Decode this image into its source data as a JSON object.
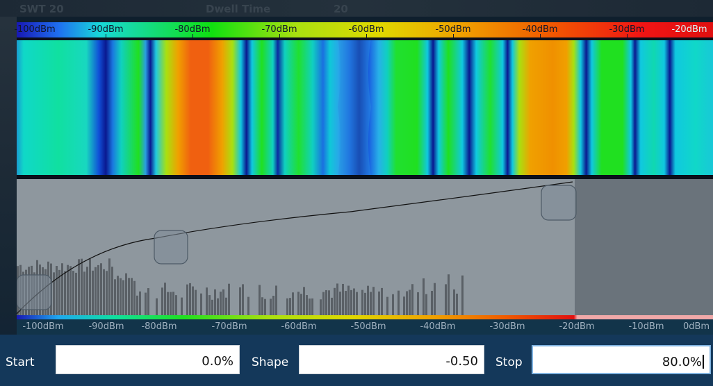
{
  "ghost_header": {
    "left": "SWT 20",
    "mid": "Dwell Time",
    "right": "20"
  },
  "top_axis": {
    "labels": [
      "-100dBm",
      "-90dBm",
      "-80dBm",
      "-70dBm",
      "-60dBm",
      "-50dBm",
      "-40dBm",
      "-30dBm",
      "-20dBm"
    ]
  },
  "bottom_axis": {
    "labels": [
      "-100dBm",
      "-90dBm",
      "-80dBm",
      "-70dBm",
      "-60dBm",
      "-50dBm",
      "-40dBm",
      "-30dBm",
      "-20dBm",
      "-10dBm",
      "0dBm"
    ]
  },
  "color_mapping": {
    "start": {
      "label": "Start",
      "value": "0.0%"
    },
    "shape": {
      "label": "Shape",
      "value": "-0.50"
    },
    "stop": {
      "label": "Stop",
      "value": "80.0%"
    }
  },
  "colors": {
    "histogram_area": "#8e979e",
    "histogram_outside": "#6a737b",
    "histogram_bars": "#5a6066",
    "controls_bg": "#14385a"
  }
}
